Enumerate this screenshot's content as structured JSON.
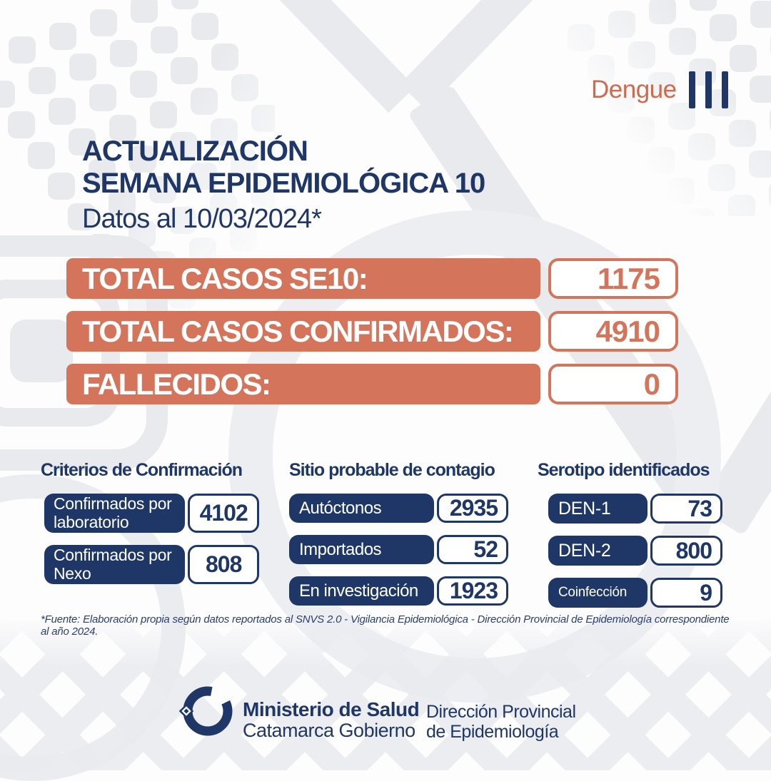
{
  "brand": {
    "wordmark": "Dengue",
    "icon": "three-vertical-bars"
  },
  "header": {
    "title_line1": "ACTUALIZACIÓN",
    "title_line2": "SEMANA EPIDEMIOLÓGICA 10",
    "subtitle": "Datos al 10/03/2024*"
  },
  "summary_rows": [
    {
      "label": "TOTAL CASOS SE10:",
      "value": "1175"
    },
    {
      "label": "TOTAL CASOS CONFIRMADOS:",
      "value": "4910"
    },
    {
      "label": "FALLECIDOS:",
      "value": "0"
    }
  ],
  "columns": [
    {
      "heading": "Criterios de Confirmación",
      "rows": [
        {
          "label": "Confirmados por laboratorio",
          "value": "4102"
        },
        {
          "label": "Confirmados por Nexo",
          "value": "808"
        }
      ]
    },
    {
      "heading": "Sitio probable de contagio",
      "rows": [
        {
          "label": "Autóctonos",
          "value": "2935"
        },
        {
          "label": "Importados",
          "value": "52"
        },
        {
          "label": "En investigación",
          "value": "1923"
        }
      ]
    },
    {
      "heading": "Serotipo identificados",
      "rows": [
        {
          "label": "DEN-1",
          "value": "73"
        },
        {
          "label": "DEN-2",
          "value": "800"
        },
        {
          "label": "Coinfección",
          "value": "9"
        }
      ]
    }
  ],
  "footnote": "*Fuente: Elaboración propia según datos reportados al SNVS 2.0 - Vigilancia Epidemiológica - Dirección Provincial de Epidemiología correspondiente al año 2024.",
  "footer": {
    "org_line1": "Ministerio de Salud",
    "org_line2": "Catamarca Gobierno",
    "dept_line1": "Dirección Provincial",
    "dept_line2": "de Epidemiología"
  },
  "colors": {
    "navy": "#1E3767",
    "orange": "#D4745B",
    "wordmark_orange": "#CC6B50",
    "pattern_gray": "#E8EAEE",
    "background": "#FDFDFD"
  }
}
